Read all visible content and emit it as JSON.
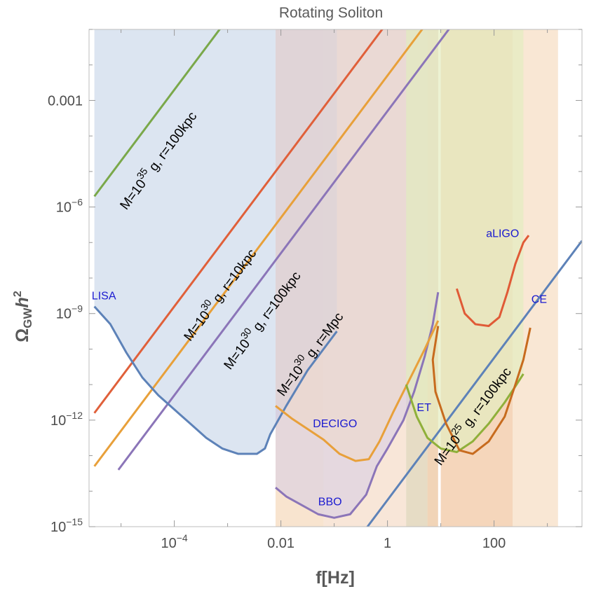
{
  "chart_data": {
    "type": "line",
    "title": "Rotating Soliton",
    "xlabel": "f[Hz]",
    "ylabel_main": "Ω",
    "ylabel_sub": "GW",
    "ylabel_tail": "h",
    "ylabel_sup": "2",
    "xscale": "log",
    "yscale": "log",
    "xlim_log10": [
      -5.6,
      3.65
    ],
    "ylim_log10": [
      -15,
      -1
    ],
    "xticks": [
      {
        "log10": -4,
        "label": "10",
        "sup": "−4"
      },
      {
        "log10": -2,
        "label": "0.01",
        "sup": ""
      },
      {
        "log10": 0,
        "label": "1",
        "sup": ""
      },
      {
        "log10": 2,
        "label": "100",
        "sup": ""
      }
    ],
    "yticks": [
      {
        "log10": -3,
        "label": "0.001",
        "sup": ""
      },
      {
        "log10": -6,
        "label": "10",
        "sup": "−6"
      },
      {
        "log10": -9,
        "label": "10",
        "sup": "−9"
      },
      {
        "log10": -12,
        "label": "10",
        "sup": "−12"
      },
      {
        "log10": -15,
        "label": "10",
        "sup": "−15"
      }
    ],
    "bands": [
      {
        "name": "band-1",
        "x_log10": [
          -2.1,
          -1.2
        ],
        "color": "#f2c9a0",
        "opacity": 0.5
      },
      {
        "name": "band-2",
        "x_log10": [
          -1.2,
          0.35
        ],
        "color": "#f0c8a8",
        "opacity": 0.45
      },
      {
        "name": "band-3",
        "x_log10": [
          0.35,
          0.75
        ],
        "color": "#cdb98c",
        "opacity": 0.5
      },
      {
        "name": "band-4",
        "x_log10": [
          0.75,
          0.95
        ],
        "color": "#e0a060",
        "opacity": 0.45
      },
      {
        "name": "band-5",
        "x_log10": [
          1.0,
          2.35
        ],
        "color": "#e8a468",
        "opacity": 0.45
      },
      {
        "name": "band-6",
        "x_log10": [
          2.35,
          3.2
        ],
        "color": "#f2c9a0",
        "opacity": 0.45
      }
    ],
    "detectors": [
      {
        "name": "LISA",
        "label": "LISA",
        "color": "#5d82b8",
        "fill": "#c5d3e8",
        "fill_opacity": 0.6,
        "label_pos": {
          "x_log10": -5.55,
          "y_log10": -8.6
        },
        "points": [
          [
            -5.5,
            -8.8
          ],
          [
            -5.2,
            -9.3
          ],
          [
            -4.9,
            -10.1
          ],
          [
            -4.6,
            -10.8
          ],
          [
            -4.3,
            -11.3
          ],
          [
            -4.0,
            -11.7
          ],
          [
            -3.7,
            -12.1
          ],
          [
            -3.4,
            -12.5
          ],
          [
            -3.1,
            -12.8
          ],
          [
            -2.8,
            -12.95
          ],
          [
            -2.45,
            -12.95
          ],
          [
            -2.3,
            -12.8
          ],
          [
            -2.2,
            -12.4
          ],
          [
            -1.9,
            -11.6
          ],
          [
            -1.5,
            -10.6
          ],
          [
            -1.15,
            -9.9
          ],
          [
            -0.95,
            -9.5
          ]
        ],
        "fill_top_log10": -1
      },
      {
        "name": "BBO",
        "label": "BBO",
        "color": "#8b75b8",
        "fill": "#d6cce6",
        "fill_opacity": 0.55,
        "label_pos": {
          "x_log10": -1.3,
          "y_log10": -14.4
        },
        "points": [
          [
            -2.1,
            -13.9
          ],
          [
            -1.9,
            -14.15
          ],
          [
            -1.6,
            -14.4
          ],
          [
            -1.3,
            -14.65
          ],
          [
            -1.0,
            -14.75
          ],
          [
            -0.7,
            -14.65
          ],
          [
            -0.4,
            -14.1
          ],
          [
            -0.2,
            -13.3
          ],
          [
            0.0,
            -12.8
          ],
          [
            0.3,
            -12.0
          ],
          [
            0.5,
            -11.2
          ],
          [
            0.7,
            -10.2
          ],
          [
            0.85,
            -9.3
          ],
          [
            0.95,
            -8.4
          ]
        ],
        "fill_top_log10": -1
      },
      {
        "name": "DECIGO",
        "label": "DECIGO",
        "color": "#e8a03a",
        "fill": "#f5dcbc",
        "fill_opacity": 0.3,
        "label_pos": {
          "x_log10": -1.4,
          "y_log10": -12.2
        },
        "points": [
          [
            -2.1,
            -11.6
          ],
          [
            -1.8,
            -11.95
          ],
          [
            -1.5,
            -12.25
          ],
          [
            -1.2,
            -12.55
          ],
          [
            -0.9,
            -12.95
          ],
          [
            -0.6,
            -13.15
          ],
          [
            -0.35,
            -13.1
          ],
          [
            -0.15,
            -12.6
          ],
          [
            0.1,
            -11.8
          ],
          [
            0.4,
            -10.9
          ],
          [
            0.7,
            -10.0
          ],
          [
            0.95,
            -9.2
          ]
        ],
        "fill_top_log10": -1
      },
      {
        "name": "ET",
        "label": "ET",
        "color": "#8fb03a",
        "fill": "#e4ecc0",
        "fill_opacity": 0.7,
        "label_pos": {
          "x_log10": 0.55,
          "y_log10": -11.75
        },
        "points": [
          [
            0.35,
            -11.0
          ],
          [
            0.55,
            -11.9
          ],
          [
            0.75,
            -12.5
          ],
          [
            1.0,
            -12.8
          ],
          [
            1.3,
            -12.9
          ],
          [
            1.6,
            -12.6
          ],
          [
            1.9,
            -12.1
          ],
          [
            2.2,
            -11.5
          ],
          [
            2.4,
            -11.05
          ],
          [
            2.55,
            -10.7
          ]
        ],
        "fill_top_log10": -1
      },
      {
        "name": "CE",
        "label": "CE",
        "color": "#c76b1e",
        "fill": "#f3dac0",
        "fill_opacity": 0.0,
        "label_pos": {
          "x_log10": 2.7,
          "y_log10": -8.7
        },
        "points": [
          [
            0.95,
            -9.35
          ],
          [
            0.85,
            -10.3
          ],
          [
            0.9,
            -11.2
          ],
          [
            1.1,
            -12.1
          ],
          [
            1.35,
            -12.85
          ],
          [
            1.6,
            -12.95
          ],
          [
            1.9,
            -12.6
          ],
          [
            2.2,
            -11.9
          ],
          [
            2.4,
            -11.0
          ],
          [
            2.55,
            -10.3
          ],
          [
            2.68,
            -9.4
          ]
        ],
        "fill_top_log10": -1
      },
      {
        "name": "aLIGO",
        "label": "aLIGO",
        "color": "#e05a36",
        "fill": "#f0b090",
        "fill_opacity": 0.0,
        "label_pos": {
          "x_log10": 1.85,
          "y_log10": -6.85
        },
        "points": [
          [
            1.3,
            -8.3
          ],
          [
            1.45,
            -9.0
          ],
          [
            1.65,
            -9.3
          ],
          [
            1.9,
            -9.35
          ],
          [
            2.1,
            -9.1
          ],
          [
            2.25,
            -8.4
          ],
          [
            2.4,
            -7.6
          ],
          [
            2.55,
            -7.0
          ],
          [
            2.65,
            -6.8
          ]
        ],
        "fill_top_log10": -1
      }
    ],
    "series": [
      {
        "name": "M=10^35 g, r=100kpc",
        "color": "#7aa84a",
        "y_at_x0": 5.3,
        "slope": 2.0,
        "x_start": -5.5,
        "label_pre": "M=10",
        "label_exp": "35",
        "label_post": " g, r=100kpc",
        "label_at": [
          -4.9,
          -6.1
        ]
      },
      {
        "name": "M=10^30 g, r=10kpc",
        "color": "#e0603a",
        "y_at_x0": -0.8,
        "slope": 2.0,
        "x_start": -5.5,
        "label_pre": "M=10",
        "label_exp": "30",
        "label_post": " g, r=10kpc",
        "label_at": [
          -3.7,
          -9.8
        ]
      },
      {
        "name": "M=10^30 g, r=100kpc",
        "color": "#e8a03a",
        "y_at_x0": -2.3,
        "slope": 2.0,
        "x_start": -5.5,
        "label_pre": "M=10",
        "label_exp": "30",
        "label_post": " g, r=100kpc",
        "label_at": [
          -2.95,
          -10.6
        ]
      },
      {
        "name": "M=10^30 g, r=Mpc",
        "color": "#8b75b8",
        "y_at_x0": -3.3,
        "slope": 2.0,
        "x_start": -5.05,
        "label_pre": "M=10",
        "label_exp": "30",
        "label_post": " g, r=Mpc",
        "label_at": [
          -1.95,
          -11.35
        ]
      },
      {
        "name": "M=10^25 g, r=100kpc",
        "color": "#5d82b8",
        "y_at_x0": -14.25,
        "slope": 2.0,
        "x_start": -0.38,
        "label_pre": "M=10",
        "label_exp": "25",
        "label_post": " g, r=100kpc",
        "label_at": [
          1.0,
          -13.3
        ]
      }
    ]
  }
}
